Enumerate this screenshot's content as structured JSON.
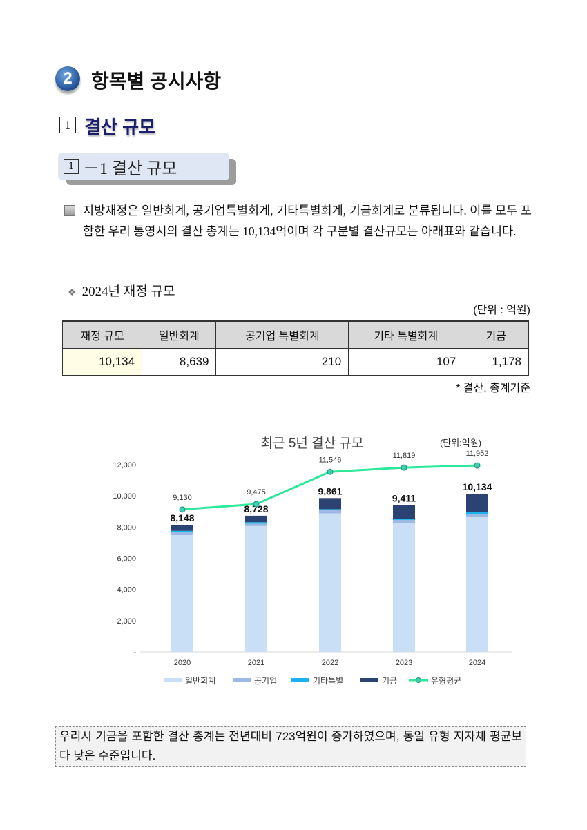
{
  "section": {
    "number": "2",
    "title": "항목별 공시사항"
  },
  "subsection": {
    "number": "1",
    "title": "결산 규모"
  },
  "box": {
    "number": "1",
    "title": "－1 결산 규모"
  },
  "paragraph": "지방재정은 일반회계, 공기업특별회계, 기타특별회계, 기금회계로 분류됩니다. 이를 모두 포함한 우리 통영시의 결산 총계는 10,134억이며 각 구분별 결산규모는 아래표와 같습니다.",
  "table": {
    "title": "2024년 재정 규모",
    "unit": "(단위 : 억원)",
    "headers": [
      "재정 규모",
      "일반회계",
      "공기업 특별회계",
      "기타 특별회계",
      "기금"
    ],
    "row": [
      "10,134",
      "8,639",
      "210",
      "107",
      "1,178"
    ],
    "note": "* 결산, 총계기준"
  },
  "chart_data": {
    "type": "bar",
    "stacked": true,
    "title": "최근 5년 결산 규모",
    "unit": "(단위:억원)",
    "categories": [
      "2020",
      "2021",
      "2022",
      "2023",
      "2024"
    ],
    "ylim": [
      0,
      12000
    ],
    "yticks": [
      "-",
      "2,000",
      "4,000",
      "6,000",
      "8,000",
      "10,000",
      "12,000"
    ],
    "series": [
      {
        "name": "일반회계",
        "color": "#c9dff5",
        "values": [
          7480,
          8066,
          8880,
          8280,
          8639
        ]
      },
      {
        "name": "공기업",
        "color": "#9db8e2",
        "values": [
          170,
          150,
          200,
          180,
          210
        ]
      },
      {
        "name": "기타특별",
        "color": "#19b3ef",
        "values": [
          110,
          100,
          70,
          70,
          107
        ]
      },
      {
        "name": "기금",
        "color": "#2a4373",
        "values": [
          388,
          412,
          711,
          881,
          1178
        ]
      }
    ],
    "totals": [
      "8,148",
      "8,728",
      "9,861",
      "9,411",
      "10,134"
    ],
    "total_values": [
      8148,
      8728,
      9861,
      9411,
      10134
    ],
    "line": {
      "name": "유형평균",
      "color": "#2ee89a",
      "values": [
        9130,
        9475,
        11546,
        11819,
        11952
      ],
      "labels": [
        "9,130",
        "9,475",
        "11,546",
        "11,819",
        "11,952"
      ]
    },
    "grid": false,
    "legend": "bottom"
  },
  "conclusion": "우리시 기금을 포함한 결산 총계는 전년대비 723억원이 증가하였으며, 동일 유형 지자체 평균보다 낮은 수준입니다."
}
